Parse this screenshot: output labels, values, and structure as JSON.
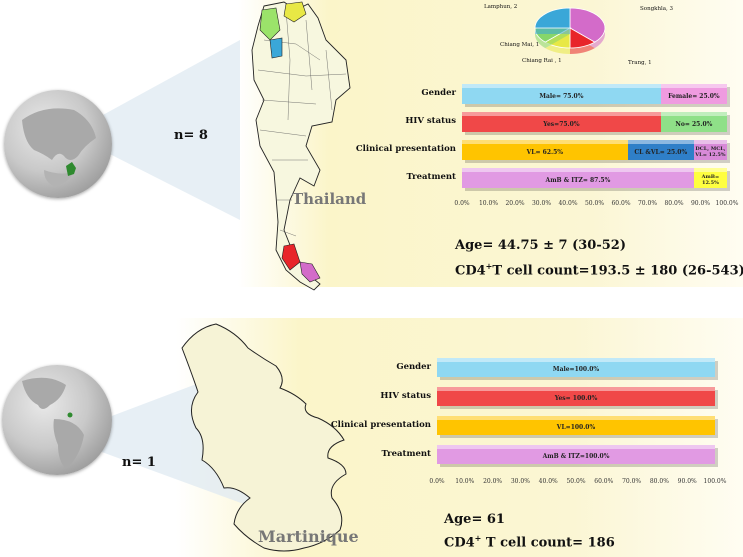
{
  "thailand": {
    "n_label": "n= 8",
    "country_name": "Thailand",
    "age_text": "Age= 44.75 ± 7 (30-52)",
    "cd4_prefix": "CD4",
    "cd4_sup": "+",
    "cd4_suffix": "T cell count=193.5 ± 180 (26-543)",
    "pie_labels": {
      "lamphun": "Lamphun, 2",
      "songkhla": "Songkhla, 3",
      "chiang_mai": "Chiang Mai, 1",
      "chiang_rai": "Chiang Rai , 1",
      "trang": "Trang, 1"
    }
  },
  "martinique": {
    "n_label": "n= 1",
    "country_name": "Martinique",
    "age_text": "Age= 61",
    "cd4_prefix": "CD4",
    "cd4_sup": "+",
    "cd4_suffix": " T cell count= 186"
  },
  "colors": {
    "gender_male": "#8fd8f2",
    "gender_female": "#ef9be0",
    "hiv_yes": "#f04848",
    "hiv_no": "#8fe088",
    "clin_vl": "#ffc400",
    "clin_clvl": "#2f7fc8",
    "clin_dcl": "#d88ad8",
    "treat_amb_itz": "#e19ae3",
    "treat_amb": "#ffff40",
    "panel_bg": "#fbf6cf",
    "map_fill": "#f4f4d8"
  },
  "chart_data": [
    {
      "type": "bar",
      "stacked": true,
      "orientation": "horizontal",
      "categories": [
        "Gender",
        "HIV status",
        "Clinical presentation",
        "Treatment"
      ],
      "xlim": [
        0,
        100
      ],
      "ticks": [
        "0.0%",
        "10.0%",
        "20.0%",
        "30.0%",
        "40.0%",
        "50.0%",
        "60.0%",
        "70.0%",
        "80.0%",
        "90.0%",
        "100.0%"
      ],
      "rows": [
        {
          "category": "Gender",
          "segments": [
            {
              "label": "Male= 75.0%",
              "value": 75.0,
              "color_key": "gender_male"
            },
            {
              "label": "Female= 25.0%",
              "value": 25.0,
              "color_key": "gender_female"
            }
          ]
        },
        {
          "category": "HIV status",
          "segments": [
            {
              "label": "Yes=75.0%",
              "value": 75.0,
              "color_key": "hiv_yes"
            },
            {
              "label": "No= 25.0%",
              "value": 25.0,
              "color_key": "hiv_no"
            }
          ]
        },
        {
          "category": "Clinical presentation",
          "segments": [
            {
              "label": "VL= 62.5%",
              "value": 62.5,
              "color_key": "clin_vl"
            },
            {
              "label": "CL &VL= 25.0%",
              "value": 25.0,
              "color_key": "clin_clvl"
            },
            {
              "label": "DCL, MCL, VL= 12.5%",
              "value": 12.5,
              "color_key": "clin_dcl"
            }
          ]
        },
        {
          "category": "Treatment",
          "segments": [
            {
              "label": "AmB & ITZ= 87.5%",
              "value": 87.5,
              "color_key": "treat_amb_itz"
            },
            {
              "label": "AmB= 12.5%",
              "value": 12.5,
              "color_key": "treat_amb"
            }
          ]
        }
      ]
    },
    {
      "type": "bar",
      "stacked": true,
      "orientation": "horizontal",
      "categories": [
        "Gender",
        "HIV status",
        "Clinical presentation",
        "Treatment"
      ],
      "xlim": [
        0,
        100
      ],
      "ticks": [
        "0.0%",
        "10.0%",
        "20.0%",
        "30.0%",
        "40.0%",
        "50.0%",
        "60.0%",
        "70.0%",
        "80.0%",
        "90.0%",
        "100.0%"
      ],
      "rows": [
        {
          "category": "Gender",
          "segments": [
            {
              "label": "Male=100.0%",
              "value": 100.0,
              "color_key": "gender_male"
            }
          ]
        },
        {
          "category": "HIV status",
          "segments": [
            {
              "label": "Yes= 100.0%",
              "value": 100.0,
              "color_key": "hiv_yes"
            }
          ]
        },
        {
          "category": "Clinical presentation",
          "segments": [
            {
              "label": "VL=100.0%",
              "value": 100.0,
              "color_key": "clin_vl"
            }
          ]
        },
        {
          "category": "Treatment",
          "segments": [
            {
              "label": "AmB & ITZ=100.0%",
              "value": 100.0,
              "color_key": "treat_amb_itz"
            }
          ]
        }
      ]
    },
    {
      "type": "pie",
      "slices": [
        {
          "label": "Songkhla, 3",
          "value": 3,
          "color": "#d36bc9"
        },
        {
          "label": "Trang, 1",
          "value": 1,
          "color": "#e8252a"
        },
        {
          "label": "Chiang Rai , 1",
          "value": 1,
          "color": "#e8e845"
        },
        {
          "label": "Chiang Mai, 1",
          "value": 1,
          "color": "#86d66a"
        },
        {
          "label": "Lamphun, 2",
          "value": 2,
          "color": "#3aa7d8"
        }
      ]
    }
  ]
}
